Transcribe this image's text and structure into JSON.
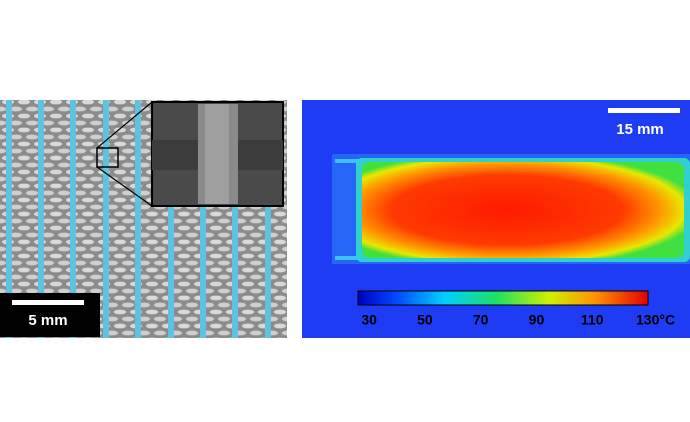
{
  "left_panel": {
    "scale_bar": "5 mm"
  },
  "right_panel": {
    "scale_bar": "15 mm",
    "colorbar": {
      "range": [
        26,
        130
      ],
      "ticks": [
        30,
        50,
        70,
        90,
        110,
        {
          "value": 130,
          "label": "130°C"
        }
      ]
    }
  }
}
